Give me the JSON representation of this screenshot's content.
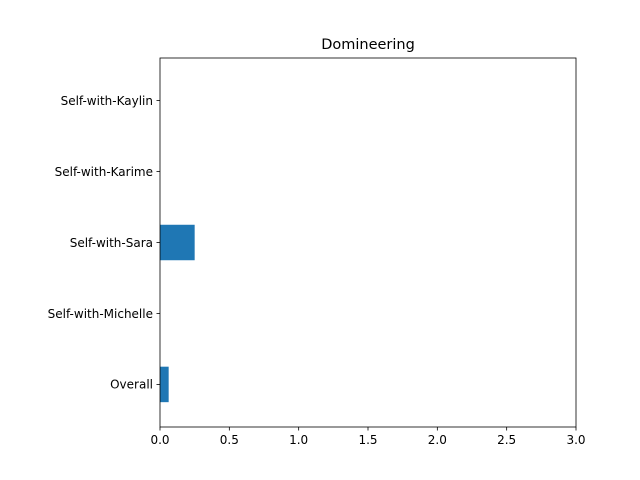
{
  "chart_data": {
    "type": "bar",
    "orientation": "horizontal",
    "title": "Domineering",
    "xlabel": "",
    "ylabel": "",
    "categories": [
      "Self-with-Kaylin",
      "Self-with-Karime",
      "Self-with-Sara",
      "Self-with-Michelle",
      "Overall"
    ],
    "values": [
      0,
      0,
      0.25,
      0,
      0.0625
    ],
    "xlim": [
      0,
      3
    ],
    "xticks": [
      "0.0",
      "0.5",
      "1.0",
      "1.5",
      "2.0",
      "2.5",
      "3.0"
    ],
    "grid": false,
    "legend": "none",
    "bar_color": "#1f77b4"
  }
}
